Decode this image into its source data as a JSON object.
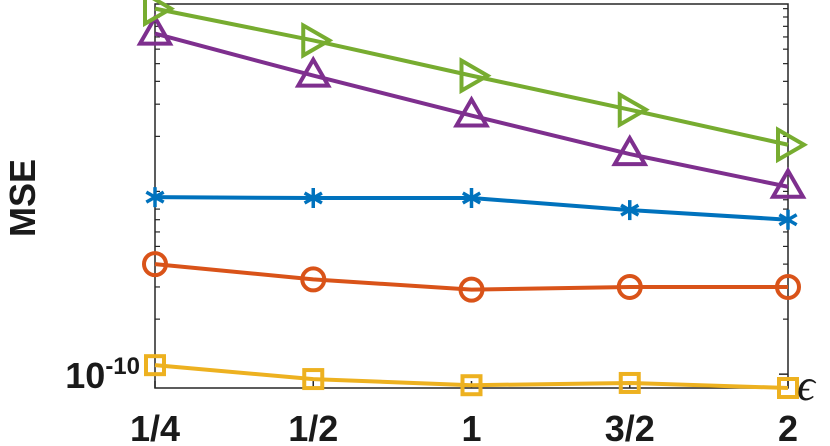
{
  "chart_data": {
    "type": "line",
    "title": "",
    "xlabel": "ϵ",
    "ylabel": "MSE",
    "x_categories": [
      "1/4",
      "1/2",
      "1",
      "3/2",
      "2"
    ],
    "y_scale": "log",
    "y_tick_label": {
      "base": "10",
      "exponent": "-10"
    },
    "ylim": [
      8.4e-11,
      1.06e-08
    ],
    "grid": false,
    "series": [
      {
        "marker": "triangle-right",
        "color": "#77AC30",
        "values": [
          1e-08,
          6.7e-09,
          4.3e-09,
          2.8e-09,
          1.8e-09
        ]
      },
      {
        "marker": "triangle-up",
        "color": "#7E2F8E",
        "values": [
          7.3e-09,
          4.3e-09,
          2.6e-09,
          1.6e-09,
          1.06e-09
        ]
      },
      {
        "marker": "asterisk",
        "color": "#0072BD",
        "values": [
          9.3e-10,
          9.2e-10,
          9.2e-10,
          7.9e-10,
          7e-10
        ]
      },
      {
        "marker": "circle",
        "color": "#D95319",
        "values": [
          4e-10,
          3.3e-10,
          2.9e-10,
          3e-10,
          3e-10
        ]
      },
      {
        "marker": "square",
        "color": "#EDB120",
        "values": [
          1.12e-10,
          9.4e-11,
          8.7e-11,
          8.95e-11,
          8.4e-11
        ]
      }
    ]
  }
}
